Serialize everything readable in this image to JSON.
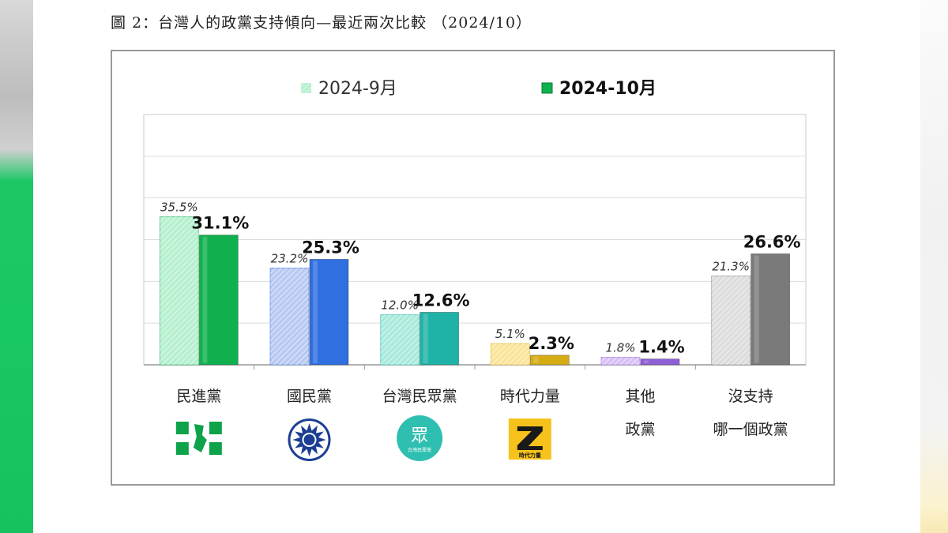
{
  "figure_title": "圖 2：台灣人的政黨支持傾向—最近兩次比較 （2024/10）",
  "colors": {
    "series_a": [
      "#b6f0cf",
      "#b9c9f3",
      "#a9eadc",
      "#fbe49a",
      "#d9c2f4",
      "#dddddd"
    ],
    "series_b": [
      "#10b04f",
      "#2f6fe0",
      "#1fb3a8",
      "#d6ac14",
      "#8f5fd6",
      "#7a7a7a"
    ]
  },
  "party_logos": {
    "dpp": "dpp-logo",
    "kmt": "kmt-sun-logo",
    "tpp": "tpp-logo",
    "npp": "npp-logo"
  },
  "chart_data": {
    "type": "bar",
    "categories": [
      [
        "民進黨"
      ],
      [
        "國民黨"
      ],
      [
        "台灣民眾黨"
      ],
      [
        "時代力量"
      ],
      [
        "其他",
        "政黨"
      ],
      [
        "沒支持",
        "哪一個政黨"
      ]
    ],
    "series": [
      {
        "name": "2024-9月",
        "values": [
          35.5,
          23.2,
          12.0,
          5.1,
          1.8,
          21.3
        ],
        "labels": [
          "35.5%",
          "23.2%",
          "12.0%",
          "5.1%",
          "1.8%",
          "21.3%"
        ]
      },
      {
        "name": "2024-10月",
        "values": [
          31.1,
          25.3,
          12.6,
          2.3,
          1.4,
          26.6
        ],
        "labels": [
          "31.1%",
          "25.3%",
          "12.6%",
          "2.3%",
          "1.4%",
          "26.6%"
        ]
      }
    ],
    "ylim": [
      0,
      60
    ],
    "grid": true,
    "legend": "top-center",
    "tpp_logo_text": "眾",
    "tpp_logo_subtext": "台灣民眾黨",
    "npp_logo_text": "時代力量"
  }
}
